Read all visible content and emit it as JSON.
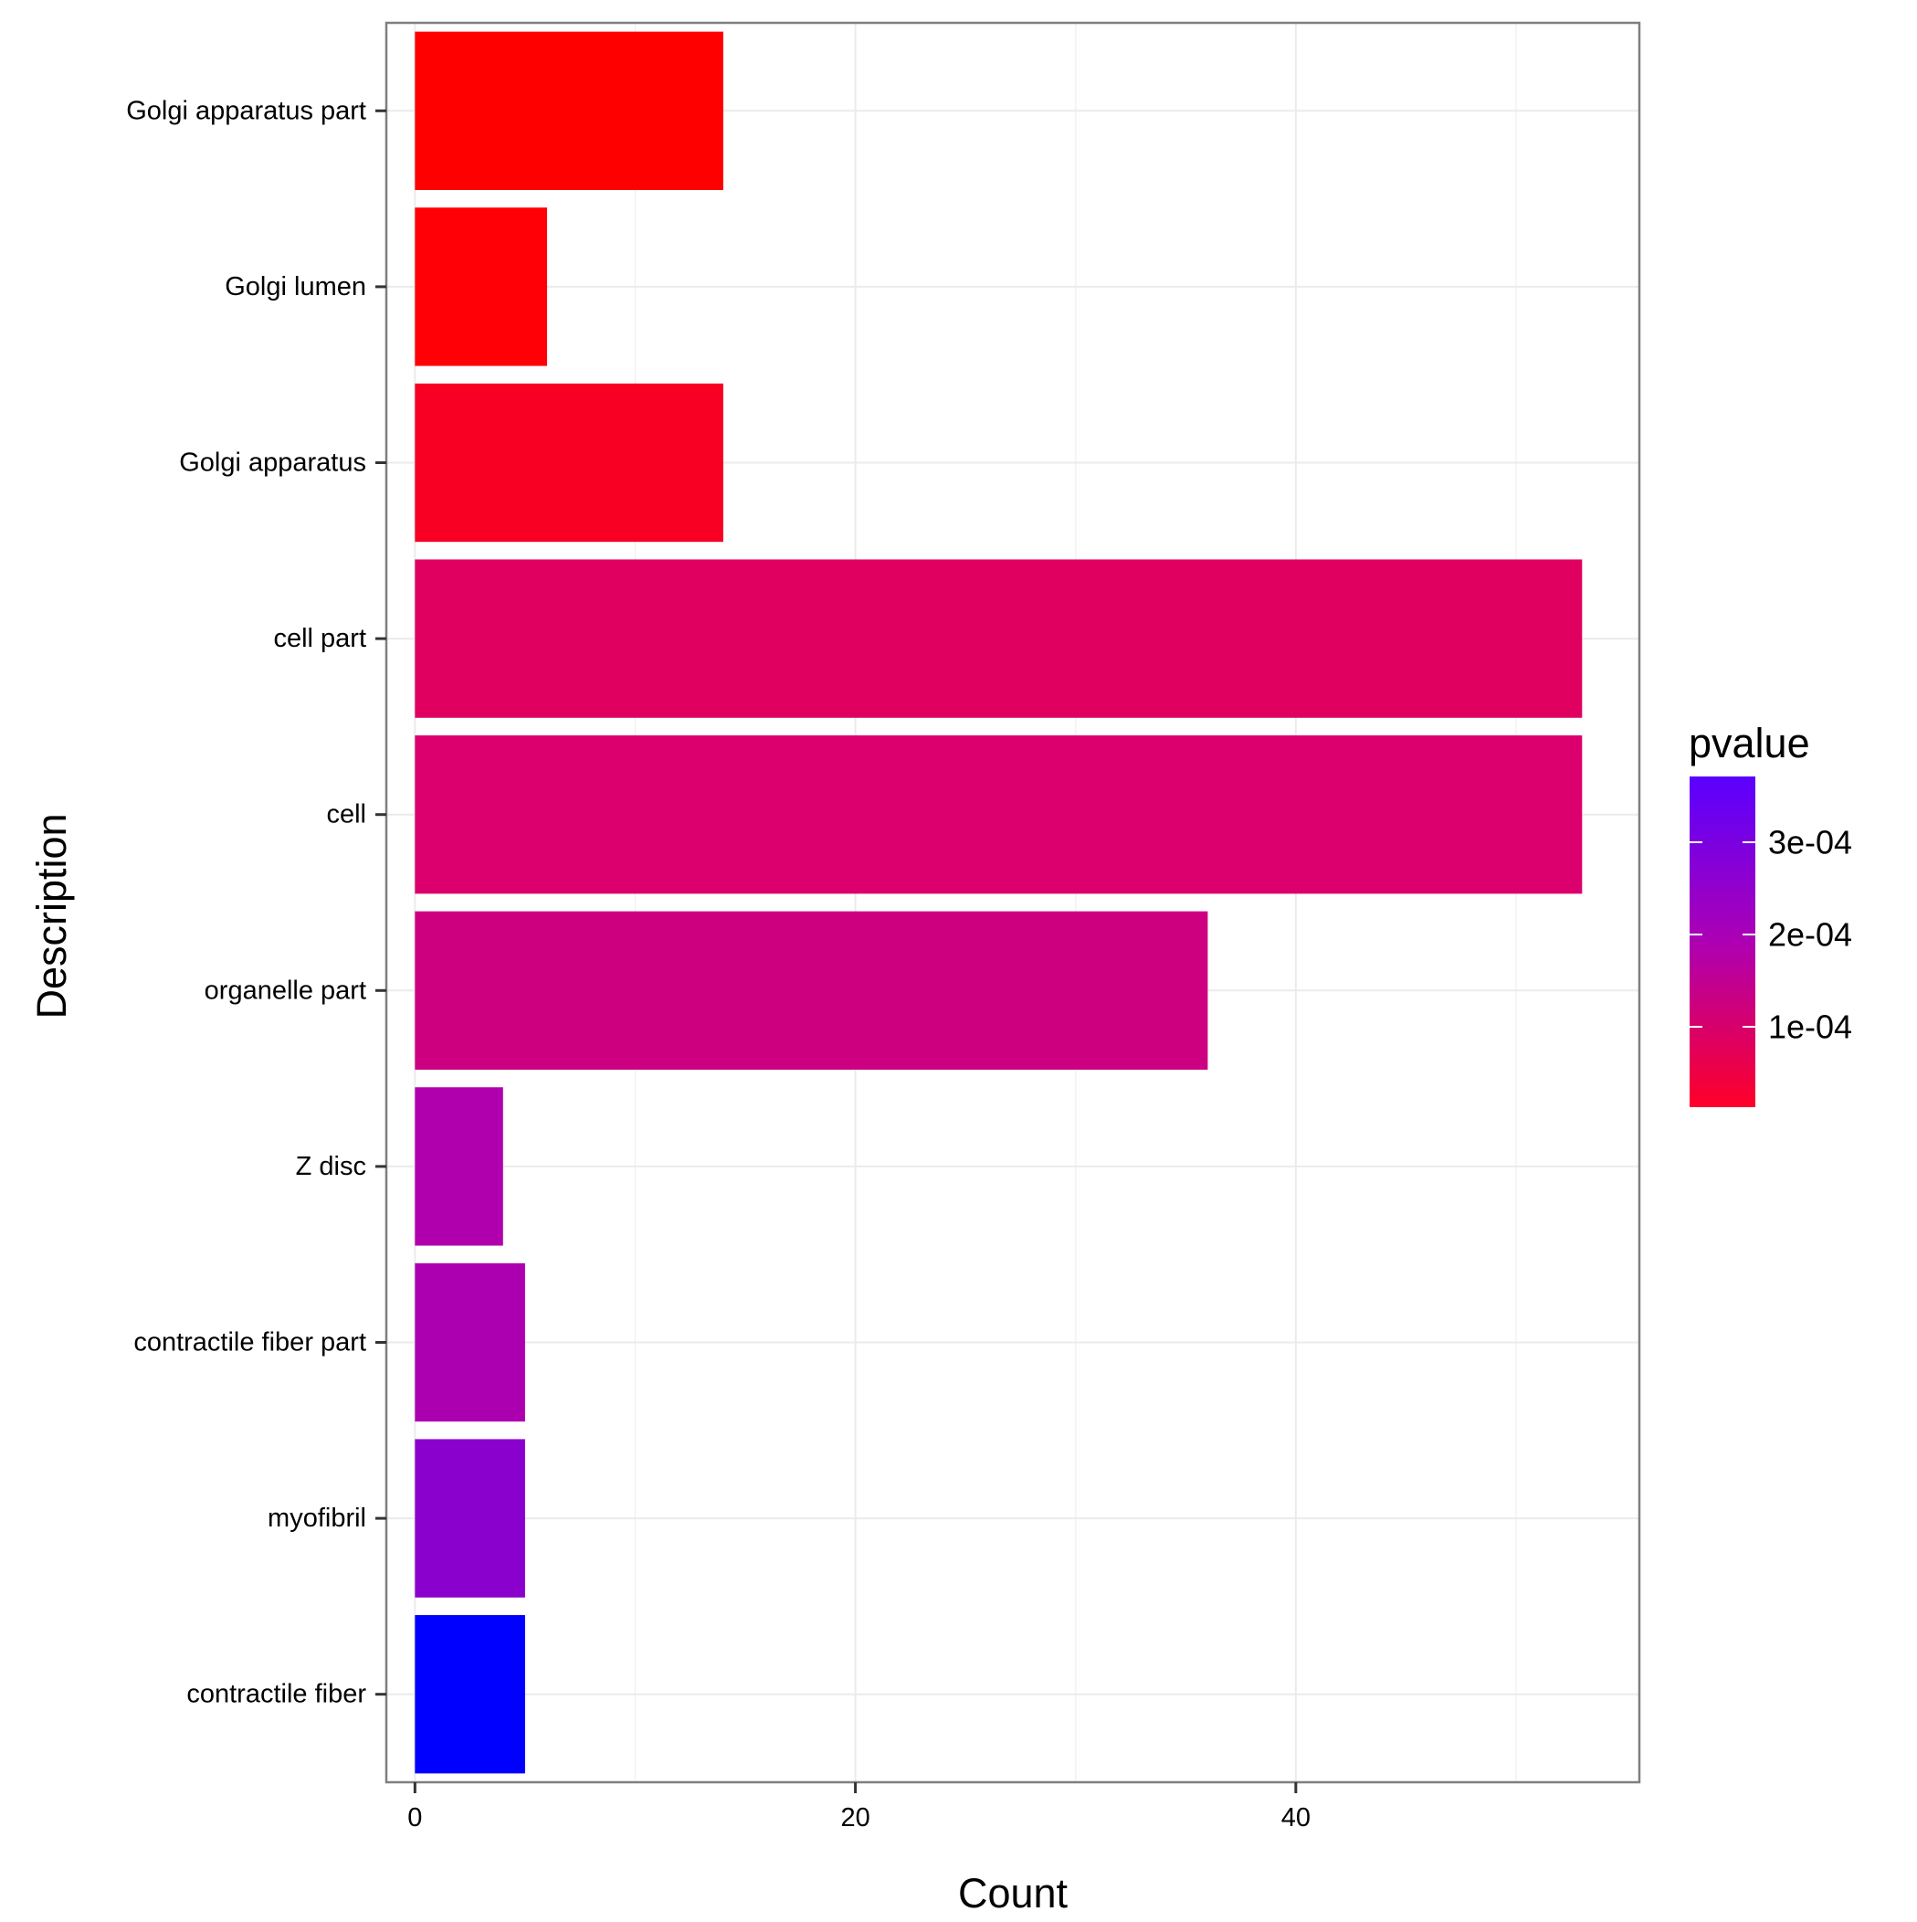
{
  "chart_data": {
    "type": "bar",
    "orientation": "horizontal",
    "xlabel": "Count",
    "ylabel": "Description",
    "xlim": [
      -1.3,
      55.6
    ],
    "x_ticks": [
      0,
      20,
      40
    ],
    "x_tick_labels": [
      "0",
      "20",
      "40"
    ],
    "grid": true,
    "categories": [
      "Golgi apparatus part",
      "Golgi lumen",
      "Golgi apparatus",
      "cell part",
      "cell",
      "organelle part",
      "Z disc",
      "contractile fiber part",
      "myofibril",
      "contractile fiber"
    ],
    "values": [
      14,
      6,
      14,
      53,
      53,
      36,
      4,
      5,
      5,
      5
    ],
    "bar_colors": [
      "#ff0000",
      "#ff0006",
      "#f70024",
      "#e00060",
      "#db006d",
      "#cd0080",
      "#b000ad",
      "#ac00b0",
      "#8a00cd",
      "#0000ff"
    ],
    "legend": {
      "title": "pvalue",
      "placement": "right",
      "labels": [
        "3e-04",
        "2e-04",
        "1e-04"
      ],
      "gradient_top": "#5a00ff",
      "gradient_bottom": "#ff0028"
    }
  }
}
